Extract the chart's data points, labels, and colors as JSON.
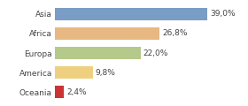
{
  "categories": [
    "Asia",
    "Africa",
    "Europa",
    "America",
    "Oceania"
  ],
  "values": [
    39.0,
    26.8,
    22.0,
    9.8,
    2.4
  ],
  "labels": [
    "39,0%",
    "26,8%",
    "22,0%",
    "9,8%",
    "2,4%"
  ],
  "bar_colors": [
    "#7a9dc5",
    "#e8b882",
    "#b5c98a",
    "#efd080",
    "#cc3333"
  ],
  "background_color": "#ffffff",
  "xlim": [
    0,
    48
  ],
  "label_fontsize": 6.5,
  "tick_fontsize": 6.5,
  "bar_height": 0.65
}
